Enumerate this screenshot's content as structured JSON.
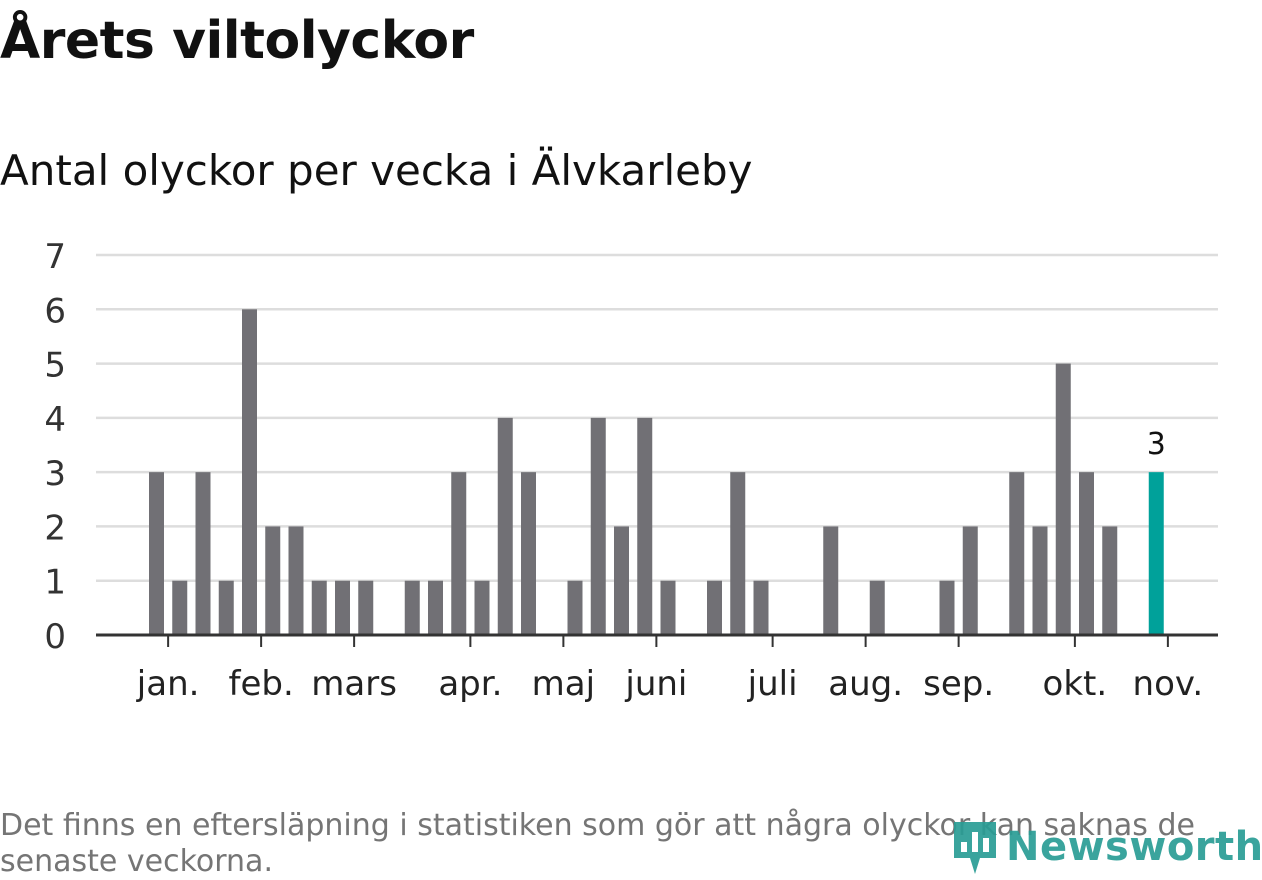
{
  "title": "Årets viltolyckor",
  "chart_data": {
    "type": "bar",
    "title": "Antal olyckor per vecka i Älvkarleby",
    "xlabel": "",
    "ylabel": "",
    "ylim": [
      0,
      7
    ],
    "yticks": [
      "0",
      "1",
      "2",
      "3",
      "4",
      "5",
      "6",
      "7"
    ],
    "grid": true,
    "month_labels": [
      "jan.",
      "feb.",
      "mars",
      "apr.",
      "maj",
      "juni",
      "juli",
      "aug.",
      "sep.",
      "okt.",
      "nov."
    ],
    "month_week_index": [
      0.5,
      4.5,
      8.5,
      13.5,
      17.5,
      21.5,
      26.5,
      30.5,
      34.5,
      39.5,
      43.5
    ],
    "values": [
      3,
      1,
      3,
      1,
      6,
      2,
      2,
      1,
      1,
      1,
      0,
      1,
      1,
      3,
      1,
      4,
      3,
      0,
      1,
      4,
      2,
      4,
      1,
      0,
      1,
      3,
      1,
      0,
      0,
      2,
      0,
      1,
      0,
      0,
      1,
      2,
      0,
      3,
      2,
      5,
      3,
      2,
      0,
      3
    ],
    "highlight_index": 43,
    "highlight_label": "3",
    "colors": {
      "bar": "#717075",
      "highlight": "#00a19a",
      "grid": "#dddddd",
      "axis": "#333333"
    }
  },
  "footnote": "Det finns en eftersläpning i statistiken som gör att några olyckor kan saknas de senaste veckorna.",
  "logo": {
    "text": "Newsworthy",
    "icon": "bar-chart-pin-icon"
  }
}
